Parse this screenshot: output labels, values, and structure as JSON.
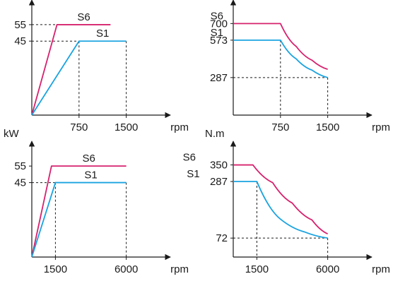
{
  "colors": {
    "s6": "#d6226e",
    "s1": "#1aa3e0",
    "axis": "#1a1a1a",
    "guide": "#1a1a1a"
  },
  "chart_data": [
    {
      "type": "line",
      "title": "",
      "xlabel": "rpm",
      "ylabel": "kW",
      "x_ticks": [
        750,
        1500
      ],
      "y_ticks": [
        45,
        55
      ],
      "xlim": [
        0,
        2200
      ],
      "ylim": [
        0,
        70
      ],
      "grid": false,
      "series": [
        {
          "name": "S6",
          "color_key": "s6",
          "x": [
            0,
            400,
            1250
          ],
          "y": [
            0,
            55,
            55
          ]
        },
        {
          "name": "S1",
          "color_key": "s1",
          "x": [
            0,
            750,
            1500
          ],
          "y": [
            0,
            45,
            45
          ]
        }
      ],
      "guides": [
        {
          "from": [
            0,
            55
          ],
          "to": [
            400,
            55
          ]
        },
        {
          "from": [
            0,
            45
          ],
          "to": [
            750,
            45
          ]
        },
        {
          "from": [
            750,
            45
          ],
          "to": [
            750,
            0
          ]
        },
        {
          "from": [
            1500,
            45
          ],
          "to": [
            1500,
            0
          ]
        }
      ]
    },
    {
      "type": "line",
      "title": "",
      "xlabel": "rpm",
      "ylabel": "N.m",
      "x_ticks": [
        750,
        1500
      ],
      "y_ticks": [
        287,
        573,
        700
      ],
      "xlim": [
        0,
        2200
      ],
      "ylim": [
        0,
        880
      ],
      "grid": false,
      "series": [
        {
          "name": "S6",
          "color_key": "s6",
          "x": [
            0,
            750,
            1000,
            1250,
            1500
          ],
          "y": [
            700,
            700,
            525,
            420,
            350
          ]
        },
        {
          "name": "S1",
          "color_key": "s1",
          "x": [
            0,
            750,
            1000,
            1250,
            1500
          ],
          "y": [
            573,
            573,
            430,
            344,
            287
          ]
        }
      ],
      "guides": [
        {
          "from": [
            750,
            573
          ],
          "to": [
            750,
            0
          ]
        },
        {
          "from": [
            0,
            287
          ],
          "to": [
            1500,
            287
          ]
        },
        {
          "from": [
            1500,
            287
          ],
          "to": [
            1500,
            0
          ]
        }
      ]
    },
    {
      "type": "line",
      "title": "",
      "xlabel": "rpm",
      "ylabel": "kW",
      "x_ticks": [
        1500,
        6000
      ],
      "y_ticks": [
        45,
        55
      ],
      "xlim": [
        0,
        8800
      ],
      "ylim": [
        0,
        70
      ],
      "grid": false,
      "series": [
        {
          "name": "S6",
          "color_key": "s6",
          "x": [
            0,
            1250,
            6000
          ],
          "y": [
            0,
            55,
            55
          ]
        },
        {
          "name": "S1",
          "color_key": "s1",
          "x": [
            0,
            1500,
            6000
          ],
          "y": [
            0,
            45,
            45
          ]
        }
      ],
      "guides": [
        {
          "from": [
            0,
            45
          ],
          "to": [
            1500,
            45
          ]
        },
        {
          "from": [
            1500,
            45
          ],
          "to": [
            1500,
            0
          ]
        },
        {
          "from": [
            6000,
            45
          ],
          "to": [
            6000,
            0
          ]
        }
      ]
    },
    {
      "type": "line",
      "title": "",
      "xlabel": "rpm",
      "ylabel": "N.m",
      "x_ticks": [
        1500,
        6000
      ],
      "y_ticks": [
        72,
        287,
        350
      ],
      "xlim": [
        0,
        8800
      ],
      "ylim": [
        0,
        440
      ],
      "grid": false,
      "series": [
        {
          "name": "S6",
          "color_key": "s6",
          "x": [
            0,
            1250,
            2500,
            3750,
            5000,
            6000
          ],
          "y": [
            350,
            350,
            283,
            205,
            141,
            88
          ]
        },
        {
          "name": "S1",
          "color_key": "s1",
          "x": [
            0,
            1500,
            3000,
            4500,
            6000
          ],
          "y": [
            287,
            287,
            144,
            96,
            72
          ]
        }
      ],
      "guides": [
        {
          "from": [
            1500,
            287
          ],
          "to": [
            1500,
            0
          ]
        },
        {
          "from": [
            0,
            72
          ],
          "to": [
            6000,
            72
          ]
        },
        {
          "from": [
            6000,
            72
          ],
          "to": [
            6000,
            0
          ]
        }
      ]
    }
  ]
}
